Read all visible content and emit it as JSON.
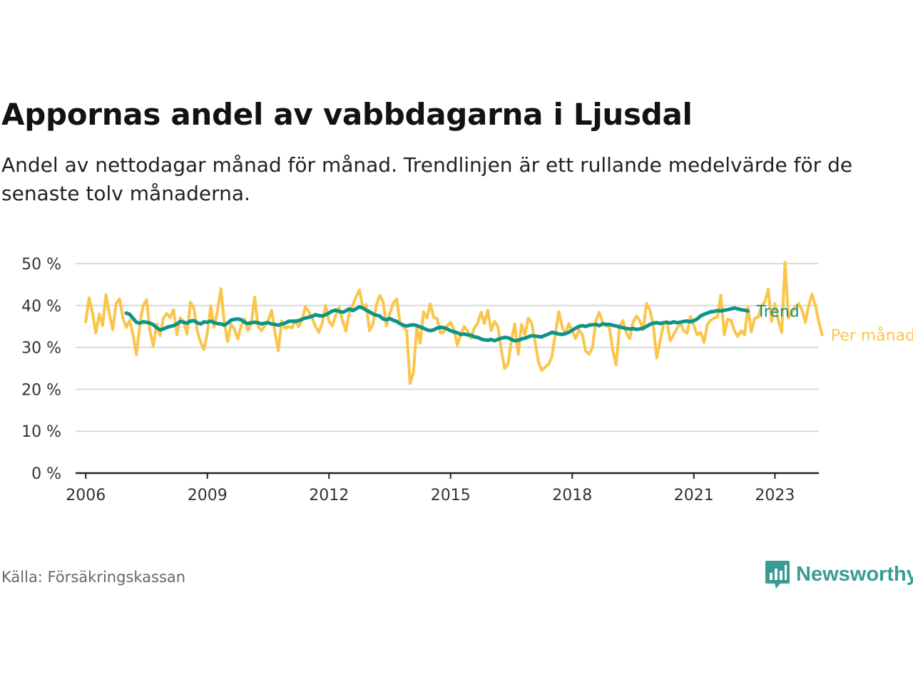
{
  "title": "Appornas andel av vabbdagarna i Ljusdal",
  "subtitle": "Andel av nettodagar månad för månad. Trendlinjen är ett rullande medelvärde för de senaste tolv månaderna.",
  "source": "Källa: Försäkringskassan",
  "brand": "Newsworthy",
  "colors": {
    "trend": "#0d9488",
    "monthly": "#fbc54a",
    "axis": "#222222",
    "grid": "#d9d9d9",
    "brand": "#3a9b93"
  },
  "chart_data": {
    "type": "line",
    "ylim": [
      0,
      50
    ],
    "y_ticks": [
      0,
      10,
      20,
      30,
      40,
      50
    ],
    "y_tick_labels": [
      "0 %",
      "10 %",
      "20 %",
      "30 %",
      "40 %",
      "50 %"
    ],
    "x_range": [
      "2005-10",
      "2024-02"
    ],
    "x_ticks": [
      "2006",
      "2009",
      "2012",
      "2015",
      "2018",
      "2021",
      "2023"
    ],
    "grid": true,
    "series": [
      {
        "name": "Per månad",
        "color": "#fbc54a",
        "start": "2006-01",
        "values": [
          36.1,
          41.8,
          38.2,
          33.5,
          38.0,
          35.2,
          42.6,
          38.0,
          34.2,
          40.5,
          41.6,
          37.0,
          34.8,
          36.5,
          33.0,
          28.3,
          35.4,
          40.0,
          41.4,
          34.0,
          30.3,
          35.6,
          32.8,
          37.0,
          38.1,
          37.1,
          39.0,
          33.0,
          37.1,
          36.0,
          33.2,
          40.8,
          39.4,
          34.0,
          31.2,
          29.5,
          33.5,
          39.9,
          34.8,
          38.7,
          44.0,
          36.0,
          31.4,
          35.5,
          34.4,
          32.0,
          35.2,
          36.8,
          34.0,
          35.7,
          42.0,
          35.0,
          34.0,
          35.1,
          36.4,
          38.9,
          33.7,
          29.2,
          36.3,
          34.6,
          35.0,
          34.6,
          36.5,
          34.9,
          36.6,
          39.6,
          38.6,
          37.0,
          35.0,
          33.6,
          35.8,
          40.0,
          36.2,
          35.1,
          37.7,
          39.5,
          36.4,
          33.9,
          38.2,
          40.1,
          42.0,
          43.7,
          39.5,
          40.2,
          34.0,
          35.5,
          40.0,
          42.4,
          41.0,
          35.1,
          38.1,
          40.5,
          41.6,
          36.0,
          34.9,
          34.0,
          21.4,
          24.0,
          35.0,
          31.0,
          38.5,
          37.0,
          40.4,
          37.1,
          36.9,
          33.5,
          33.7,
          35.2,
          36.0,
          34.2,
          30.5,
          33.1,
          35.0,
          34.0,
          32.2,
          34.6,
          35.8,
          38.4,
          35.7,
          38.9,
          34.0,
          36.2,
          35.0,
          29.4,
          25.0,
          26.1,
          31.7,
          35.6,
          28.4,
          35.5,
          33.0,
          37.0,
          35.8,
          31.5,
          26.5,
          24.5,
          25.3,
          26.0,
          27.8,
          33.3,
          38.5,
          35.0,
          33.1,
          35.7,
          34.0,
          32.1,
          34.2,
          33.0,
          29.1,
          28.4,
          30.0,
          36.4,
          38.4,
          36.0,
          35.2,
          34.8,
          29.3,
          25.8,
          35.0,
          36.4,
          33.5,
          32.1,
          36.0,
          37.5,
          36.4,
          34.2,
          40.5,
          38.9,
          35.3,
          27.5,
          31.5,
          35.5,
          36.2,
          31.6,
          33.0,
          34.5,
          35.9,
          34.0,
          33.4,
          37.4,
          35.2,
          33.0,
          33.6,
          31.2,
          35.5,
          36.5,
          37.0,
          37.3,
          42.5,
          33.0,
          36.7,
          36.5,
          34.0,
          32.6,
          34.0,
          33.0,
          39.6,
          33.7,
          36.9,
          37.2,
          40.0,
          40.8,
          43.9,
          36.2,
          40.4,
          36.4,
          33.6,
          50.3,
          37.0,
          38.2,
          39.7,
          40.5,
          39.0,
          36.0,
          40.0,
          42.7,
          40.0,
          36.0,
          33.0
        ]
      },
      {
        "name": "Trend",
        "color": "#0d9488",
        "start": "2007-01",
        "values": [
          38.2,
          37.9,
          36.9,
          36.0,
          35.8,
          36.1,
          36.0,
          35.8,
          35.4,
          34.7,
          34.2,
          34.4,
          34.8,
          35.0,
          35.2,
          35.6,
          36.2,
          36.0,
          35.8,
          36.3,
          36.4,
          35.9,
          35.6,
          36.1,
          36.0,
          36.3,
          35.9,
          35.7,
          35.6,
          35.3,
          35.8,
          36.5,
          36.7,
          36.8,
          36.6,
          36.0,
          35.7,
          35.9,
          36.0,
          35.9,
          35.6,
          35.8,
          35.9,
          35.6,
          35.5,
          35.3,
          35.6,
          35.8,
          36.2,
          36.3,
          36.2,
          36.4,
          36.7,
          37.0,
          37.2,
          37.4,
          37.8,
          37.6,
          37.5,
          37.8,
          38.2,
          38.7,
          38.9,
          38.6,
          38.4,
          38.7,
          39.2,
          38.8,
          39.2,
          39.7,
          39.4,
          38.9,
          38.5,
          38.0,
          37.7,
          37.5,
          36.8,
          36.6,
          36.9,
          36.5,
          36.2,
          35.7,
          35.3,
          35.1,
          35.3,
          35.4,
          35.2,
          34.9,
          34.6,
          34.2,
          34.0,
          34.2,
          34.6,
          34.8,
          34.7,
          34.4,
          34.0,
          33.7,
          33.5,
          33.1,
          33.2,
          33.0,
          32.9,
          32.5,
          32.4,
          32.0,
          31.8,
          31.7,
          31.9,
          31.6,
          31.9,
          32.2,
          32.4,
          32.3,
          31.9,
          31.6,
          31.7,
          32.0,
          32.2,
          32.5,
          32.8,
          32.7,
          32.6,
          32.5,
          32.9,
          33.2,
          33.6,
          33.4,
          33.2,
          33.1,
          33.3,
          33.6,
          34.1,
          34.6,
          35.0,
          35.2,
          35.0,
          35.3,
          35.4,
          35.5,
          35.2,
          35.6,
          35.5,
          35.5,
          35.3,
          35.1,
          34.9,
          34.7,
          34.5,
          34.4,
          34.5,
          34.3,
          34.4,
          34.6,
          35.0,
          35.5,
          35.8,
          35.9,
          35.7,
          35.9,
          36.0,
          35.8,
          36.1,
          35.9,
          36.0,
          36.2,
          36.3,
          36.1,
          36.4,
          36.8,
          37.5,
          37.9,
          38.2,
          38.5,
          38.6,
          38.8,
          38.7,
          38.9,
          39.0,
          39.2,
          39.4,
          39.2,
          39.0,
          38.9,
          38.7
        ]
      }
    ]
  }
}
